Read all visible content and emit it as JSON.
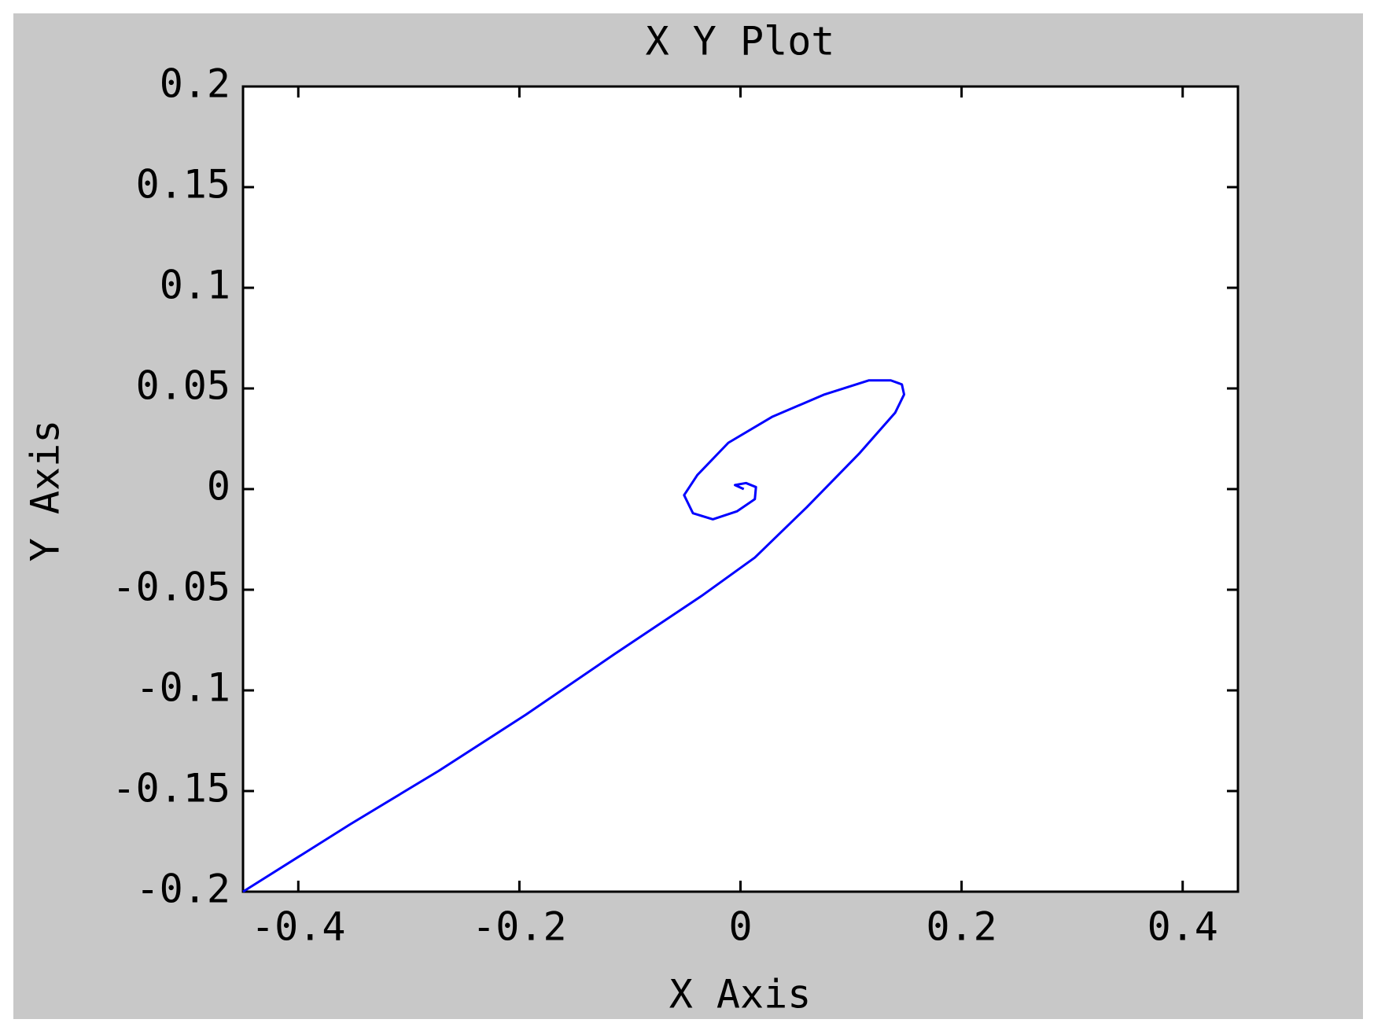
{
  "chart_data": {
    "type": "line",
    "title": "X Y Plot",
    "x_label": "X Axis",
    "y_label": "Y Axis",
    "x": [
      -0.45,
      -0.353,
      -0.273,
      -0.194,
      -0.114,
      -0.035,
      0.013,
      0.06,
      0.108,
      0.14,
      0.148,
      0.146,
      0.136,
      0.116,
      0.076,
      0.029,
      -0.011,
      -0.039,
      -0.051,
      -0.043,
      -0.025,
      -0.003,
      0.013,
      0.014,
      0.005,
      -0.005,
      0.003
    ],
    "series": [
      {
        "color": "#0000ff",
        "values": [
          -0.2,
          -0.1665,
          -0.14,
          -0.112,
          -0.082,
          -0.053,
          -0.034,
          -0.009,
          0.018,
          0.038,
          0.047,
          0.052,
          0.054,
          0.054,
          0.047,
          0.036,
          0.023,
          0.007,
          -0.003,
          -0.012,
          -0.015,
          -0.011,
          -0.005,
          0.001,
          0.003,
          0.002,
          0.0
        ]
      }
    ],
    "xlim": [
      -0.45,
      0.45
    ],
    "xticks": [
      -0.4,
      -0.2,
      0,
      0.2,
      0.4
    ],
    "ylim": [
      -0.2,
      0.2
    ],
    "yticks": [
      -0.2,
      -0.15,
      -0.1,
      -0.05,
      0,
      0.05,
      0.1,
      0.15,
      0.2
    ],
    "grid": false
  }
}
